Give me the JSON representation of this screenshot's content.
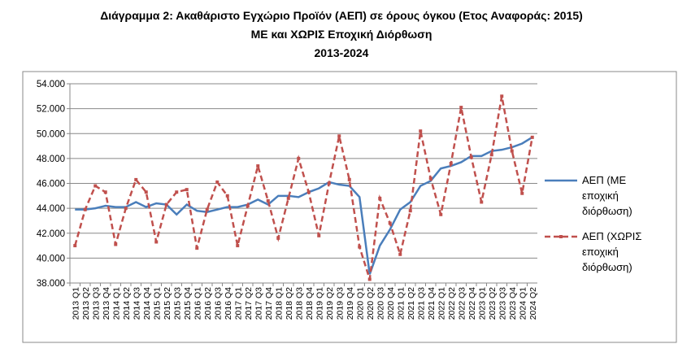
{
  "chart_data": {
    "type": "line",
    "title_lines": [
      "Διάγραμμα 2: Ακαθάριστο Εγχώριο Προϊόν (ΑΕΠ) σε όρους όγκου (Ετος Αναφοράς: 2015)",
      "ΜΕ και ΧΩΡΙΣ Εποχική Διόρθωση",
      "2013-2024"
    ],
    "categories": [
      "2013 Q1",
      "2013 Q2",
      "2013 Q3",
      "2013 Q4",
      "2014 Q1",
      "2014 Q2",
      "2014 Q3",
      "2014 Q4",
      "2015 Q1",
      "2015 Q2",
      "2015 Q3",
      "2015 Q4",
      "2016 Q1",
      "2016 Q2",
      "2016 Q3",
      "2016 Q4",
      "2017 Q1",
      "2017 Q2",
      "2017 Q3",
      "2017 Q4",
      "2018 Q1",
      "2018 Q2",
      "2018 Q3",
      "2018 Q4",
      "2019 Q1",
      "2019 Q2",
      "2019 Q3",
      "2019 Q4",
      "2020 Q1",
      "2020 Q2",
      "2020 Q3",
      "2020 Q4",
      "2021 Q1",
      "2021 Q2",
      "2021 Q3",
      "2021 Q4",
      "2022 Q1",
      "2022 Q2",
      "2022 Q3",
      "2022 Q4",
      "2023 Q1",
      "2023 Q2",
      "2023 Q3",
      "2023 Q4",
      "2024 Q1",
      "2024 Q2"
    ],
    "series": [
      {
        "name": "ΑΕΠ (ΜΕ εποχική διόρθωση)",
        "color": "#4a7ebb",
        "dashed": false,
        "markers": false,
        "values": [
          43900,
          43900,
          44000,
          44200,
          44100,
          44100,
          44500,
          44100,
          44400,
          44300,
          43500,
          44300,
          43800,
          43700,
          43900,
          44100,
          44100,
          44300,
          44700,
          44300,
          45000,
          45000,
          44900,
          45300,
          45600,
          46100,
          45900,
          45800,
          44900,
          38700,
          41000,
          42300,
          43900,
          44500,
          45800,
          46200,
          47200,
          47400,
          47700,
          48200,
          48200,
          48600,
          48700,
          48900,
          49200,
          49700
        ]
      },
      {
        "name": "ΑΕΠ (ΧΩΡΙΣ εποχική διόρθωση)",
        "color": "#c0504d",
        "dashed": true,
        "markers": true,
        "values": [
          41000,
          43900,
          45800,
          45300,
          41100,
          44000,
          46300,
          45300,
          41300,
          44300,
          45300,
          45500,
          40800,
          43900,
          46100,
          45000,
          41000,
          44200,
          47400,
          44600,
          41600,
          44800,
          48000,
          45300,
          41800,
          46000,
          49800,
          46300,
          40900,
          38300,
          44800,
          42800,
          40300,
          43800,
          50200,
          46400,
          43500,
          47600,
          52100,
          48100,
          44500,
          48300,
          53000,
          48600,
          45200,
          49700
        ]
      }
    ],
    "ylim": [
      38000,
      54000
    ],
    "yticks": [
      {
        "value": 38000,
        "label": "38.000"
      },
      {
        "value": 40000,
        "label": "40.000"
      },
      {
        "value": 42000,
        "label": "42.000"
      },
      {
        "value": 44000,
        "label": "44.000"
      },
      {
        "value": 46000,
        "label": "46.000"
      },
      {
        "value": 48000,
        "label": "48.000"
      },
      {
        "value": 50000,
        "label": "50.000"
      },
      {
        "value": 52000,
        "label": "52.000"
      },
      {
        "value": 54000,
        "label": "54.000"
      }
    ],
    "grid": true,
    "legend": "right"
  }
}
